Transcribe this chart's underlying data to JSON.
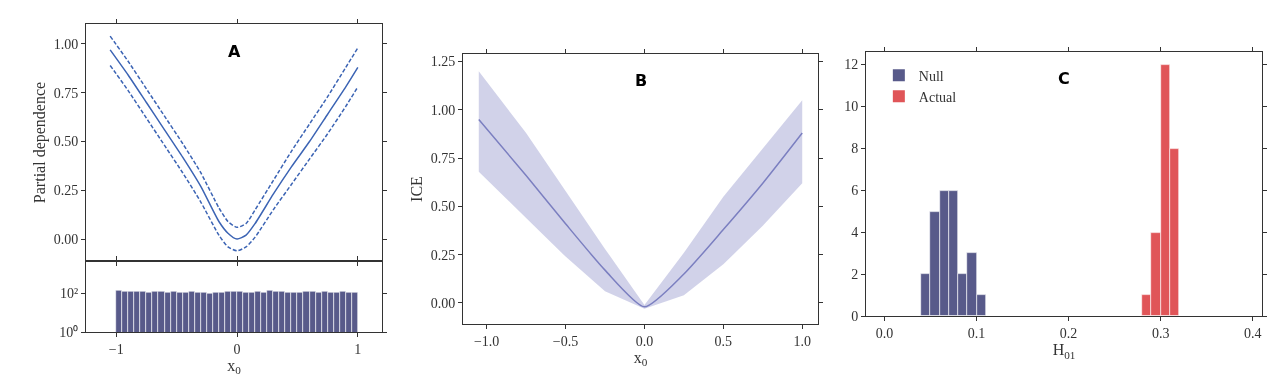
{
  "chart_data": [
    {
      "type": "line",
      "ylabel": "Partial dependence",
      "annotations": [
        "A"
      ],
      "xlim": [
        -1.25,
        1.2
      ],
      "xticks": [
        {
          "value": -1,
          "label": null
        },
        {
          "value": 0,
          "label": null
        },
        {
          "value": 1,
          "label": null
        }
      ],
      "ylim": [
        -0.11,
        1.1
      ],
      "yticks": [
        {
          "value": 0,
          "label": "0.00"
        },
        {
          "value": 0.25,
          "label": "0.25"
        },
        {
          "value": 0.5,
          "label": "0.50"
        },
        {
          "value": 0.75,
          "label": "0.75"
        },
        {
          "value": 1,
          "label": "1.00"
        }
      ],
      "tick_labels": "y",
      "x": [
        -1.05,
        -0.9,
        -0.75,
        -0.6,
        -0.45,
        -0.3,
        -0.15,
        -0.075,
        0,
        0.075,
        0.15,
        0.3,
        0.45,
        0.6,
        0.75,
        0.9,
        1.0
      ],
      "series": [
        {
          "color": "#3c64b4",
          "line_style": "solid",
          "values": [
            0.97,
            0.84,
            0.7,
            0.56,
            0.42,
            0.27,
            0.09,
            0.03,
            0.0,
            0.02,
            0.08,
            0.23,
            0.37,
            0.5,
            0.64,
            0.78,
            0.88
          ]
        },
        {
          "color": "#3c64b4",
          "line_style": "dashed",
          "values": [
            1.04,
            0.91,
            0.77,
            0.63,
            0.49,
            0.34,
            0.16,
            0.09,
            0.06,
            0.08,
            0.15,
            0.3,
            0.45,
            0.59,
            0.73,
            0.88,
            0.98
          ]
        },
        {
          "color": "#3c64b4",
          "line_style": "dashed",
          "values": [
            0.89,
            0.76,
            0.62,
            0.48,
            0.34,
            0.19,
            0.02,
            -0.04,
            -0.06,
            -0.04,
            0.01,
            0.15,
            0.28,
            0.41,
            0.54,
            0.68,
            0.78
          ]
        }
      ]
    },
    {
      "type": "histogram",
      "xlabel": "x$_{0}$",
      "log": "y",
      "xlim": [
        -1.25,
        1.2
      ],
      "xticks": [
        {
          "value": -1,
          "label": "−1"
        },
        {
          "value": 0,
          "label": "0"
        },
        {
          "value": 1,
          "label": "1"
        }
      ],
      "ylim": [
        1,
        5000
      ],
      "yticks": [
        {
          "value": 1,
          "label": "10⁰"
        },
        {
          "value": 100,
          "label": "10²"
        }
      ],
      "bins": [
        -1.0,
        -0.95,
        -0.9,
        -0.85,
        -0.8,
        -0.75,
        -0.7,
        -0.65,
        -0.6,
        -0.55,
        -0.5,
        -0.45,
        -0.4,
        -0.35,
        -0.3,
        -0.25,
        -0.2,
        -0.15,
        -0.1,
        -0.05,
        0.0,
        0.05,
        0.1,
        0.15,
        0.2,
        0.25,
        0.3,
        0.35,
        0.4,
        0.45,
        0.5,
        0.55,
        0.6,
        0.65,
        0.7,
        0.75,
        0.8,
        0.85,
        0.9,
        0.95,
        1.0
      ],
      "series": [
        {
          "color": "#585a8a",
          "values": [
            135,
            120,
            125,
            125,
            125,
            115,
            130,
            125,
            115,
            125,
            115,
            115,
            120,
            115,
            115,
            100,
            115,
            115,
            120,
            130,
            120,
            105,
            110,
            120,
            115,
            135,
            120,
            120,
            110,
            115,
            115,
            125,
            125,
            110,
            120,
            115,
            115,
            125,
            105,
            110
          ]
        }
      ]
    },
    {
      "type": "line",
      "xlabel": "x$_{0}$",
      "ylabel": "ICE",
      "annotations": [
        "B"
      ],
      "xlim": [
        -1.15,
        1.1
      ],
      "xticks": [
        {
          "value": -1,
          "label": "−1.0"
        },
        {
          "value": -0.5,
          "label": "−0.5"
        },
        {
          "value": 0,
          "label": "0.0"
        },
        {
          "value": 0.5,
          "label": "0.5"
        },
        {
          "value": 1,
          "label": "1.0"
        }
      ],
      "ylim": [
        -0.11,
        1.29
      ],
      "yticks": [
        {
          "value": 0,
          "label": "0.00"
        },
        {
          "value": 0.25,
          "label": "0.25"
        },
        {
          "value": 0.5,
          "label": "0.50"
        },
        {
          "value": 0.75,
          "label": "0.75"
        },
        {
          "value": 1,
          "label": "1.00"
        },
        {
          "value": 1.25,
          "label": "1.25"
        }
      ],
      "x": [
        -1.05,
        -0.75,
        -0.5,
        -0.25,
        0,
        0.25,
        0.5,
        0.75,
        1.0
      ],
      "series": [
        {
          "color": "#7b7fc0",
          "line_style": "solid",
          "values": [
            0.95,
            0.66,
            0.41,
            0.17,
            -0.02,
            0.15,
            0.38,
            0.62,
            0.88
          ],
          "lower": [
            0.68,
            0.44,
            0.24,
            0.06,
            -0.03,
            0.04,
            0.2,
            0.4,
            0.62
          ],
          "upper": [
            1.2,
            0.88,
            0.58,
            0.28,
            -0.01,
            0.26,
            0.55,
            0.8,
            1.05
          ]
        }
      ]
    },
    {
      "type": "histogram",
      "xlabel": "H$_{01}$",
      "annotations": [
        "C"
      ],
      "legend": "top left",
      "xlim": [
        -0.02,
        0.41
      ],
      "xticks": [
        {
          "value": 0,
          "label": "0.0"
        },
        {
          "value": 0.1,
          "label": "0.1"
        },
        {
          "value": 0.2,
          "label": "0.2"
        },
        {
          "value": 0.3,
          "label": "0.3"
        },
        {
          "value": 0.4,
          "label": "0.4"
        }
      ],
      "ylim": [
        0,
        12.6
      ],
      "yticks": [
        0,
        2,
        4,
        6,
        8,
        10,
        12
      ],
      "bins": [
        0.03,
        0.04,
        0.05,
        0.06,
        0.07,
        0.08,
        0.09,
        0.1,
        0.11,
        0.12,
        0.13,
        0.14,
        0.15,
        0.16,
        0.17,
        0.18,
        0.19,
        0.2,
        0.21,
        0.22,
        0.23,
        0.24,
        0.25,
        0.26,
        0.27,
        0.28,
        0.29,
        0.3,
        0.31,
        0.32
      ],
      "series": [
        {
          "name": "Null",
          "color": "#585a8a",
          "values": [
            0,
            2,
            5,
            6,
            6,
            2,
            3,
            1,
            0,
            0,
            0,
            0,
            0,
            0,
            0,
            0,
            0,
            0,
            0,
            0,
            0,
            0,
            0,
            0,
            0,
            0,
            0,
            0,
            0
          ]
        },
        {
          "name": "Actual",
          "color": "#e05558",
          "values": [
            0,
            0,
            0,
            0,
            0,
            0,
            0,
            0,
            0,
            0,
            0,
            0,
            0,
            0,
            0,
            0,
            0,
            0,
            0,
            0,
            0,
            0,
            0,
            0,
            0,
            1,
            4,
            12,
            8
          ]
        }
      ]
    }
  ]
}
